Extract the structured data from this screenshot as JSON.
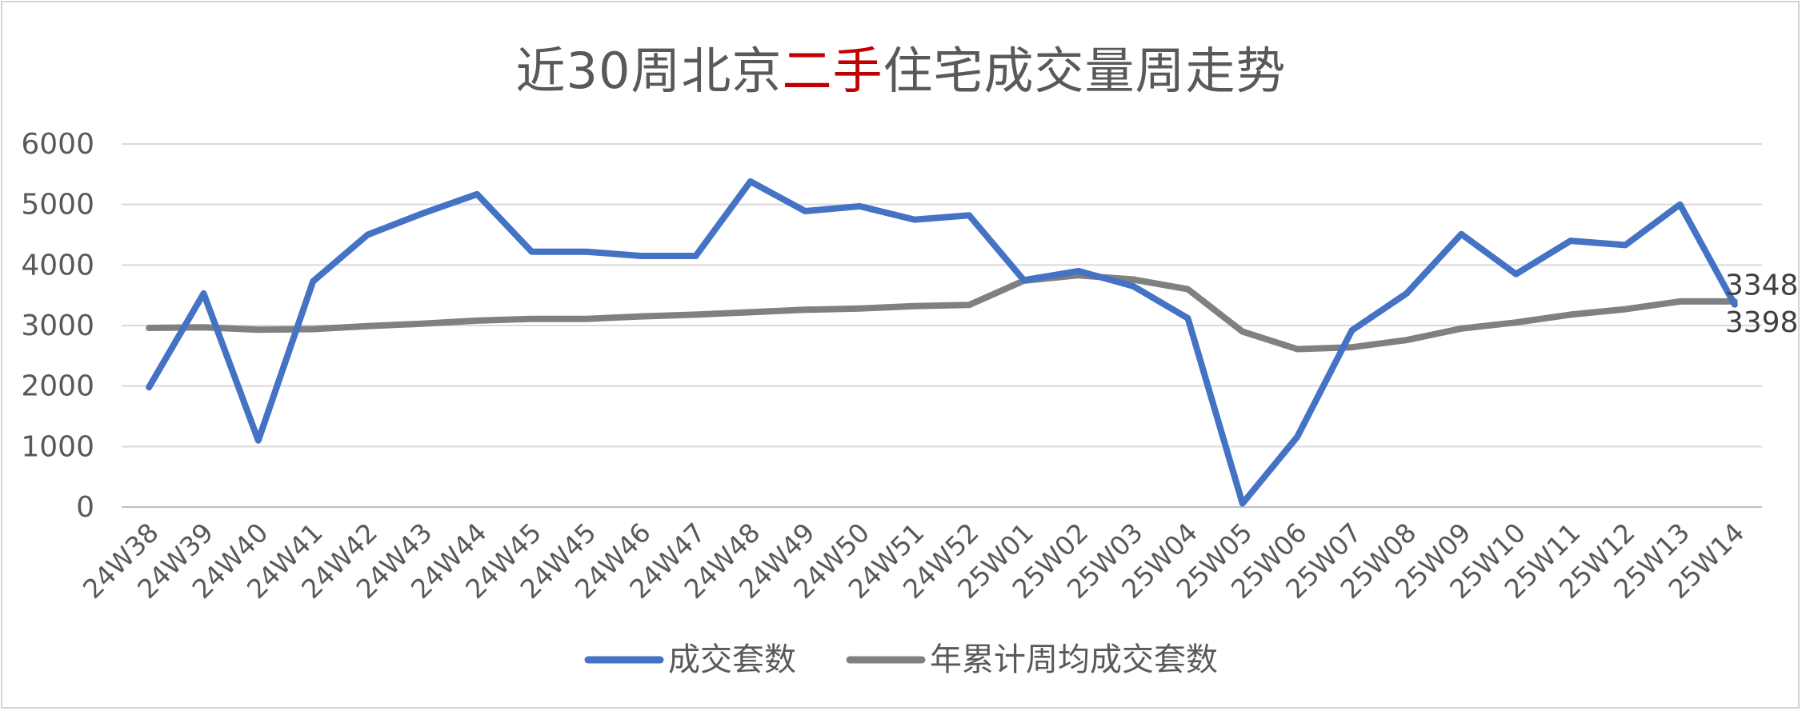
{
  "title": {
    "part1": "近30周北京",
    "accent": "二手",
    "part2": "住宅成交量周走势"
  },
  "colors": {
    "series1": "#4472c4",
    "series2": "#808080",
    "accent": "#c00000",
    "grid": "#d9d9d9",
    "text": "#595959"
  },
  "chart_data": {
    "type": "line",
    "title": "近30周北京二手住宅成交量周走势",
    "categories": [
      "24W38",
      "24W39",
      "24W40",
      "24W41",
      "24W42",
      "24W43",
      "24W44",
      "24W45",
      "24W45",
      "24W46",
      "24W47",
      "24W48",
      "24W49",
      "24W50",
      "24W51",
      "24W52",
      "25W01",
      "25W02",
      "25W03",
      "25W04",
      "25W05",
      "25W06",
      "25W07",
      "25W08",
      "25W09",
      "25W10",
      "25W11",
      "25W12",
      "25W13",
      "25W14"
    ],
    "series": [
      {
        "name": "成交套数",
        "color": "#4472c4",
        "values": [
          1980,
          3530,
          1100,
          3730,
          4500,
          4850,
          5170,
          4220,
          4220,
          4150,
          4150,
          5380,
          4890,
          4970,
          4750,
          4820,
          3750,
          3900,
          3650,
          3120,
          60,
          1160,
          2920,
          3530,
          4510,
          3850,
          4400,
          4330,
          5000,
          3348
        ]
      },
      {
        "name": "年累计周均成交套数",
        "color": "#808080",
        "values": [
          2960,
          2970,
          2930,
          2940,
          2990,
          3030,
          3080,
          3110,
          3110,
          3150,
          3180,
          3220,
          3260,
          3280,
          3320,
          3340,
          3740,
          3830,
          3760,
          3600,
          2900,
          2610,
          2640,
          2760,
          2950,
          3050,
          3180,
          3270,
          3398,
          3398
        ]
      }
    ],
    "data_labels": [
      "3348",
      "3398"
    ],
    "yticks": [
      "0",
      "1000",
      "2000",
      "3000",
      "4000",
      "5000",
      "6000"
    ],
    "ylim": [
      0,
      6000
    ],
    "grid": true,
    "legend_position": "bottom"
  }
}
